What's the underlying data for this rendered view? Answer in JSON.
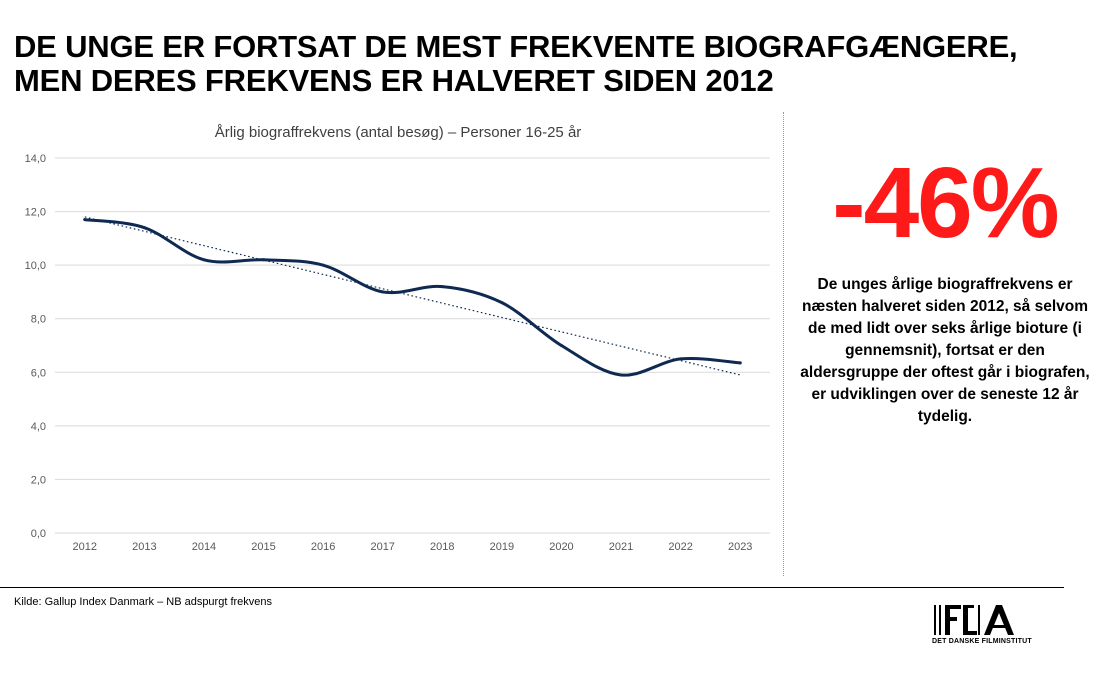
{
  "headline": {
    "line1": "DE UNGE ER FORTSAT DE MEST FREKVENTE BIOGRAFGÆNGERE,",
    "line2": "MEN DERES FREKVENS ER HALVERET SIDEN 2012"
  },
  "stat": {
    "value": "-46%",
    "description": "De unges årlige biograffrekvens er næsten halveret siden 2012, så selvom de med lidt over seks årlige bioture (i gennemsnit), fortsat er den aldersgruppe der oftest går i biografen, er udviklingen over de seneste 12 år tydelig."
  },
  "source": "Kilde: Gallup Index Danmark – NB adspurgt frekvens",
  "logo": {
    "caption": "DET DANSKE FILMINSTITUT"
  },
  "colors": {
    "line": "#0f2a52",
    "trend": "#0f2a52",
    "grid": "#d9d9d9",
    "accent": "#ff1a1a"
  },
  "chart_data": {
    "type": "line",
    "title": "Årlig biograffrekvens (antal besøg) – Personer 16-25 år",
    "xlabel": "",
    "ylabel": "",
    "categories": [
      "2012",
      "2013",
      "2014",
      "2015",
      "2016",
      "2017",
      "2018",
      "2019",
      "2020",
      "2021",
      "2022",
      "2023"
    ],
    "series": [
      {
        "name": "Personer 16-25 år",
        "values": [
          11.7,
          11.4,
          10.2,
          10.2,
          10.0,
          9.0,
          9.2,
          8.6,
          7.0,
          5.9,
          6.5,
          6.35
        ]
      }
    ],
    "trendline": {
      "type": "linear",
      "start": 11.8,
      "end": 5.9
    },
    "ylim": [
      0,
      14
    ],
    "yticks": [
      "0,0",
      "2,0",
      "4,0",
      "6,0",
      "8,0",
      "10,0",
      "12,0",
      "14,0"
    ],
    "grid": true,
    "legend": "none"
  }
}
